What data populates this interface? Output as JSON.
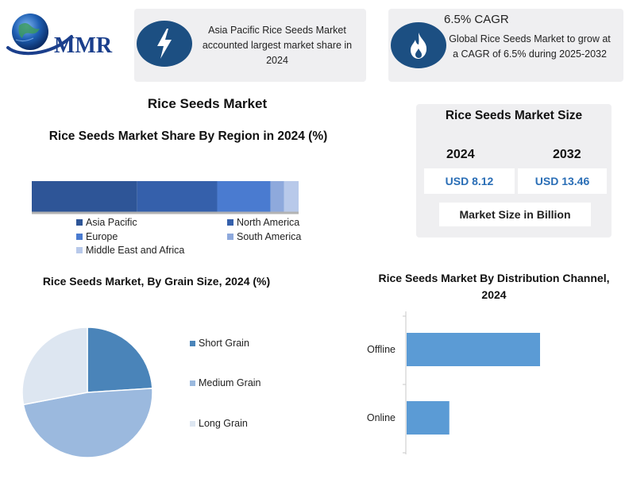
{
  "logo": {
    "text": "MMR"
  },
  "info_box_1": {
    "icon": "lightning-icon",
    "text": "Asia Pacific Rice Seeds Market accounted largest market share in 2024"
  },
  "info_box_2": {
    "icon": "flame-icon",
    "heading": "6.5% CAGR",
    "text": "Global Rice Seeds Market to grow at a CAGR of 6.5% during 2025-2032"
  },
  "main_title": "Rice Seeds Market",
  "market_size": {
    "title": "Rice Seeds Market Size",
    "years": [
      "2024",
      "2032"
    ],
    "values": [
      "USD 8.12",
      "USD 13.46"
    ],
    "unit_label": "Market Size in Billion"
  },
  "chart_data": [
    {
      "type": "bar",
      "orientation": "horizontal-stacked",
      "title": "Rice Seeds Market Share By Region in 2024 (%)",
      "series": [
        {
          "name": "Asia Paciﬁc",
          "value": 39.5,
          "color": "#2e5597"
        },
        {
          "name": "North America",
          "value": 30,
          "color": "#3560ab"
        },
        {
          "name": "Europe",
          "value": 20,
          "color": "#4a7bd0"
        },
        {
          "name": "South America",
          "value": 5,
          "color": "#8ea9dc"
        },
        {
          "name": "Middle East and Africa",
          "value": 5.5,
          "color": "#b8c9ea"
        }
      ],
      "xlim": [
        0,
        100
      ],
      "legend_position": "bottom"
    },
    {
      "type": "pie",
      "title": "Rice Seeds Market, By Grain Size, 2024 (%)",
      "series": [
        {
          "name": "Short Grain",
          "value": 24,
          "color": "#4a84b9"
        },
        {
          "name": "Medium Grain",
          "value": 48,
          "color": "#9bb9de"
        },
        {
          "name": "Long Grain",
          "value": 28,
          "color": "#dde6f1"
        }
      ],
      "legend_position": "right"
    },
    {
      "type": "bar",
      "orientation": "horizontal",
      "title": "Rice Seeds Market By Distribution Channel, 2024",
      "categories": [
        "Offline",
        "Online"
      ],
      "values": [
        100,
        32
      ],
      "xlim": [
        0,
        100
      ],
      "color": "#5b9bd5"
    }
  ]
}
